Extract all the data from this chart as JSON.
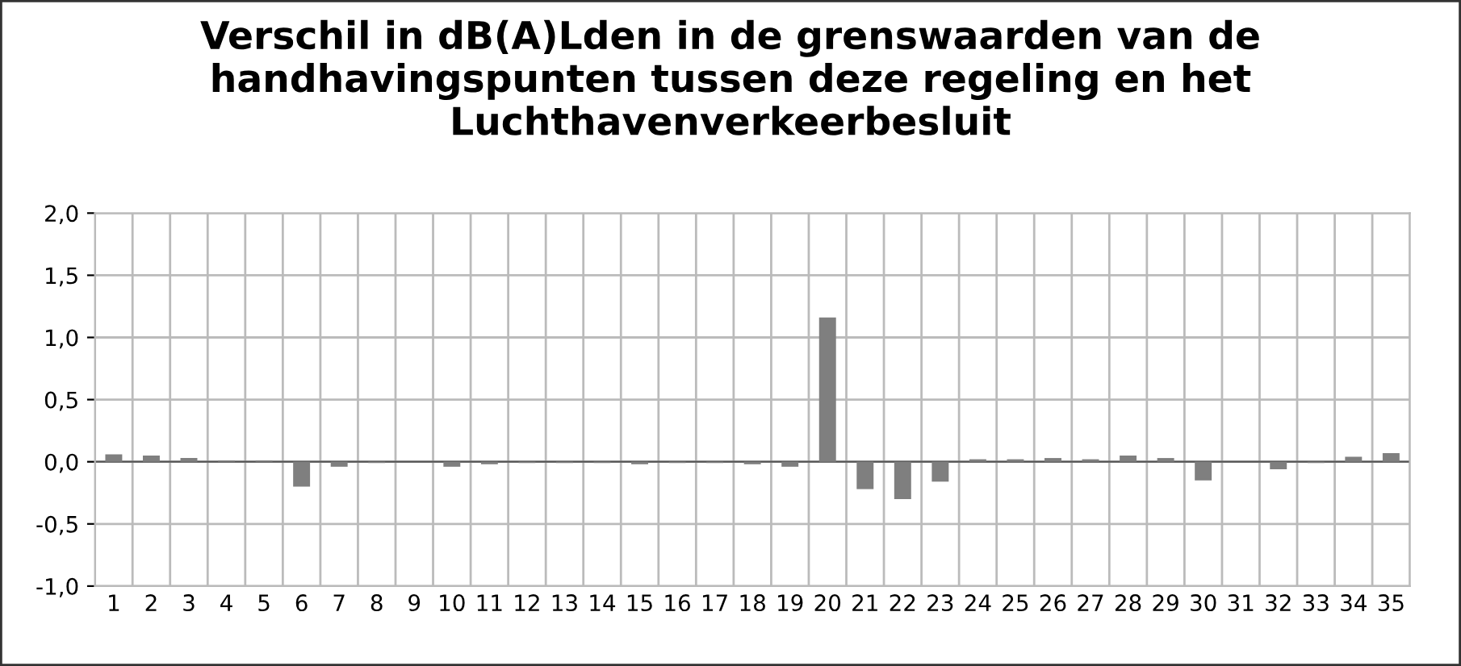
{
  "chart_data": {
    "type": "bar",
    "title": "Verschil in dB(A)Lden in de grenswaarden van de handhavingspunten tussen deze regeling en het Luchthavenverkeerbesluit",
    "categories": [
      "1",
      "2",
      "3",
      "4",
      "5",
      "6",
      "7",
      "8",
      "9",
      "10",
      "11",
      "12",
      "13",
      "14",
      "15",
      "16",
      "17",
      "18",
      "19",
      "20",
      "21",
      "22",
      "23",
      "24",
      "25",
      "26",
      "27",
      "28",
      "29",
      "30",
      "31",
      "32",
      "33",
      "34",
      "35"
    ],
    "values": [
      0.06,
      0.05,
      0.03,
      0.01,
      0.01,
      -0.2,
      -0.04,
      -0.01,
      0,
      -0.04,
      -0.02,
      -0.01,
      -0.01,
      -0.01,
      -0.02,
      -0.01,
      -0.01,
      -0.02,
      -0.04,
      1.16,
      -0.22,
      -0.3,
      -0.16,
      0.02,
      0.02,
      0.03,
      0.02,
      0.05,
      0.03,
      -0.15,
      0,
      -0.06,
      -0.01,
      0.04,
      0.07
    ],
    "color": "#7f7f7f",
    "ylim": [
      -1.0,
      2.0
    ],
    "yticks": [
      {
        "value": -1.0,
        "label": "-1,0"
      },
      {
        "value": -0.5,
        "label": "-0,5"
      },
      {
        "value": 0,
        "label": "0,0"
      },
      {
        "value": 0.5,
        "label": "0,5"
      },
      {
        "value": 1.0,
        "label": "1,0"
      },
      {
        "value": 1.5,
        "label": "1,5"
      },
      {
        "value": 2.0,
        "label": "2,0"
      }
    ],
    "grid": true,
    "legend": false
  }
}
